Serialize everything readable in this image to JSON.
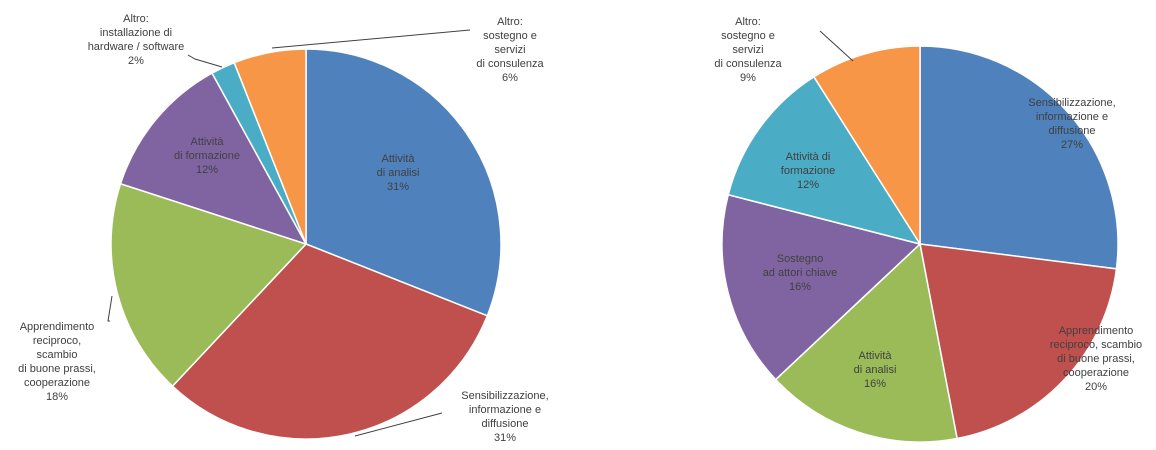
{
  "chart_data": [
    {
      "type": "pie",
      "slices": [
        {
          "label_lines": [
            "Attività",
            "di analisi"
          ],
          "pct_label": "31%",
          "value": 31,
          "color": "#4f81bd"
        },
        {
          "label_lines": [
            "Sensibilizzazione,",
            "informazione e",
            "diffusione"
          ],
          "pct_label": "31%",
          "value": 31,
          "color": "#c0504d"
        },
        {
          "label_lines": [
            "Apprendimento",
            "reciproco,",
            "scambio",
            "di buone prassi,",
            "cooperazione"
          ],
          "pct_label": "18%",
          "value": 18,
          "color": "#9bbb59"
        },
        {
          "label_lines": [
            "Attività",
            "di formazione"
          ],
          "pct_label": "12%",
          "value": 12,
          "color": "#8064a2"
        },
        {
          "label_lines": [
            "Altro:",
            "installazione di",
            "hardware / software"
          ],
          "pct_label": "2%",
          "value": 2,
          "color": "#4bacc6"
        },
        {
          "label_lines": [
            "Altro:",
            "sostegno e",
            "servizi",
            "di consulenza"
          ],
          "pct_label": "6%",
          "value": 6,
          "color": "#f79646"
        }
      ]
    },
    {
      "type": "pie",
      "slices": [
        {
          "label_lines": [
            "Sensibilizzazione,",
            "informazione e",
            "diffusione"
          ],
          "pct_label": "27%",
          "value": 27,
          "color": "#4f81bd"
        },
        {
          "label_lines": [
            "Apprendimento",
            "reciproco, scambio",
            "di buone prassi,",
            "cooperazione"
          ],
          "pct_label": "20%",
          "value": 20,
          "color": "#c0504d"
        },
        {
          "label_lines": [
            "Attività",
            "di analisi"
          ],
          "pct_label": "16%",
          "value": 16,
          "color": "#9bbb59"
        },
        {
          "label_lines": [
            "Sostegno",
            "ad attori chiave"
          ],
          "pct_label": "16%",
          "value": 16,
          "color": "#8064a2"
        },
        {
          "label_lines": [
            "Attività di",
            "formazione"
          ],
          "pct_label": "12%",
          "value": 12,
          "color": "#4bacc6"
        },
        {
          "label_lines": [
            "Altro:",
            "sostegno e",
            "servizi",
            "di consulenza"
          ],
          "pct_label": "9%",
          "value": 9,
          "color": "#f79646"
        }
      ]
    }
  ]
}
